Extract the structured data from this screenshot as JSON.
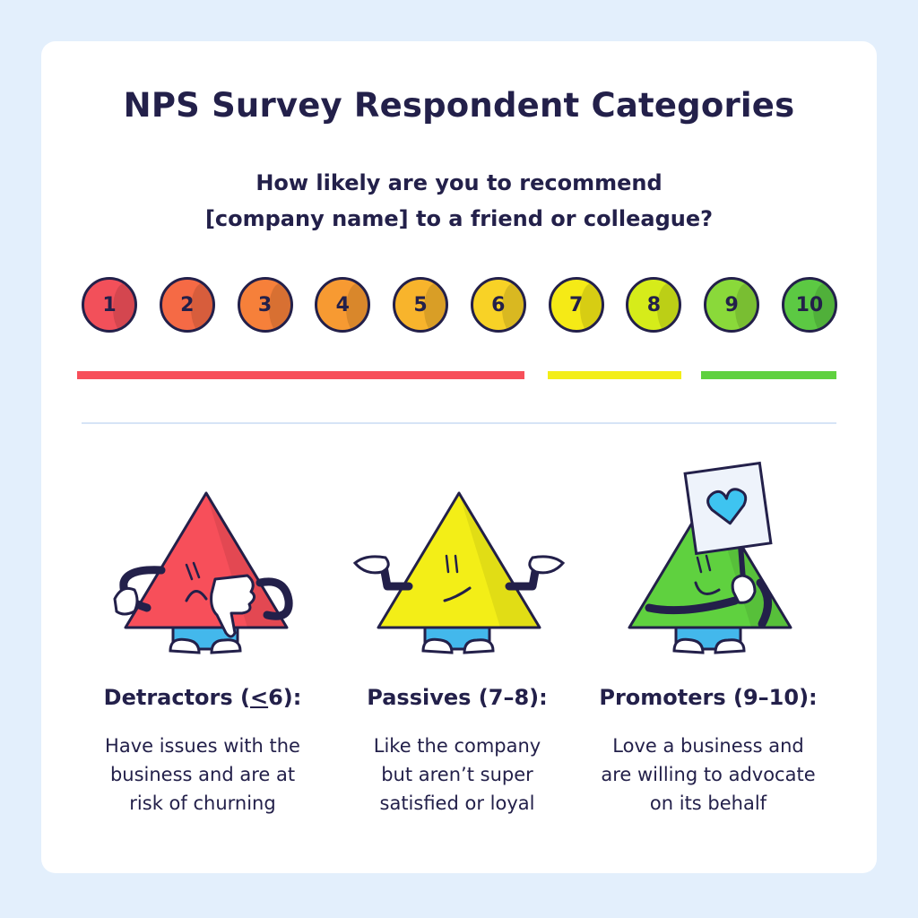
{
  "title": "NPS Survey Respondent Categories",
  "question": {
    "line1": "How likely are you to recommend",
    "line2": "[company name] to a friend or colleague?"
  },
  "scale": [
    {
      "label": "1",
      "color": "#f2505a"
    },
    {
      "label": "2",
      "color": "#f56a45"
    },
    {
      "label": "3",
      "color": "#f6803a"
    },
    {
      "label": "4",
      "color": "#f79a32"
    },
    {
      "label": "5",
      "color": "#f8b42c"
    },
    {
      "label": "6",
      "color": "#f8d226"
    },
    {
      "label": "7",
      "color": "#f5ea16"
    },
    {
      "label": "8",
      "color": "#d6ec1a"
    },
    {
      "label": "9",
      "color": "#8ad93a"
    },
    {
      "label": "10",
      "color": "#5cc943"
    }
  ],
  "bars": {
    "detractors_color": "#f74f5a",
    "passives_color": "#f3ee17",
    "promoters_color": "#5fd13f"
  },
  "categories": [
    {
      "title_pre": "Detractors (",
      "title_mark": "<",
      "title_post": "6):",
      "desc": [
        "Have issues with the",
        "business and are at",
        "risk of churning"
      ]
    },
    {
      "title": "Passives (7–8):",
      "desc": [
        "Like the company",
        "but aren’t super",
        "satisfied or loyal"
      ]
    },
    {
      "title": "Promoters (9–10):",
      "desc": [
        "Love a business and",
        "are willing to advocate",
        "on its behalf"
      ]
    }
  ],
  "colors": {
    "ink": "#23204a",
    "background": "#e3effc",
    "detractor": "#f74f5a",
    "passive": "#f3ee17",
    "promoter": "#5fd13f",
    "pants": "#43b8ec",
    "heart": "#3ec4f0"
  },
  "icons": [
    "thumbs-down-icon",
    "shrug-hands-icon",
    "heart-sign-icon"
  ]
}
